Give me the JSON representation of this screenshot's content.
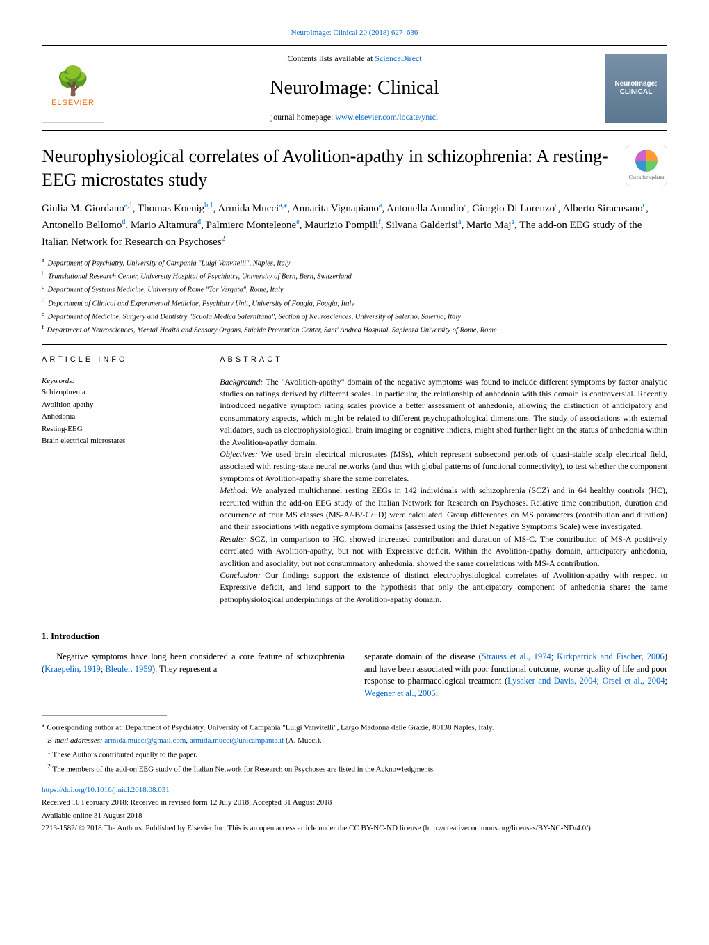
{
  "topLink": "NeuroImage: Clinical 20 (2018) 627–636",
  "header": {
    "publisherName": "ELSEVIER",
    "contentsPrefix": "Contents lists available at ",
    "contentsLink": "ScienceDirect",
    "journalName": "NeuroImage: Clinical",
    "homepagePrefix": "journal homepage: ",
    "homepageLink": "www.elsevier.com/locate/ynicl",
    "coverTitle": "NeuroImage: CLINICAL"
  },
  "article": {
    "title": "Neurophysiological correlates of Avolition-apathy in schizophrenia: A resting-EEG microstates study",
    "checkUpdates": "Check for updates"
  },
  "authors": {
    "line1a": "Giulia M. Giordano",
    "sup1": "a,1",
    "line1b": ", Thomas Koenig",
    "sup2": "b,1",
    "line1c": ", Armida Mucci",
    "sup3": "a,",
    "supStar": "⁎",
    "line1d": ", Annarita Vignapiano",
    "sup4": "a",
    "line1e": ",",
    "line2a": "Antonella Amodio",
    "sup5": "a",
    "line2b": ", Giorgio Di Lorenzo",
    "sup6": "c",
    "line2c": ", Alberto Siracusano",
    "sup7": "c",
    "line2d": ", Antonello Bellomo",
    "sup8": "d",
    "line2e": ",",
    "line3a": "Mario Altamura",
    "sup9": "d",
    "line3b": ", Palmiero Monteleone",
    "sup10": "e",
    "line3c": ", Maurizio Pompili",
    "sup11": "f",
    "line3d": ", Silvana Galderisi",
    "sup12": "a",
    "line3e": ", Mario Maj",
    "sup13": "a",
    "line3f": ", The add-on EEG study of the Italian Network for Research on Psychoses",
    "sup14": "2"
  },
  "affiliations": {
    "a": "Department of Psychiatry, University of Campania \"Luigi Vanvitelli\", Naples, Italy",
    "b": "Translational Research Center, University Hospital of Psychiatry, University of Bern, Bern, Switzerland",
    "c": "Department of Systems Medicine, University of Rome \"Tor Vergata\", Rome, Italy",
    "d": "Department of Clinical and Experimental Medicine, Psychiatry Unit, University of Foggia, Foggia, Italy",
    "e": "Department of Medicine, Surgery and Dentistry \"Scuola Medica Salernitana\", Section of Neurosciences, University of Salerno, Salerno, Italy",
    "f": "Department of Neurosciences, Mental Health and Sensory Organs, Suicide Prevention Center, Sant' Andrea Hospital, Sapienza University of Rome, Rome"
  },
  "info": {
    "head": "ARTICLE INFO",
    "keywordsLabel": "Keywords:",
    "keywords": [
      "Schizophrenia",
      "Avolition-apathy",
      "Anhedonia",
      "Resting-EEG",
      "Brain electrical microstates"
    ]
  },
  "abstract": {
    "head": "ABSTRACT",
    "backgroundLabel": "Background:",
    "background": " The \"Avolition-apathy\" domain of the negative symptoms was found to include different symptoms by factor analytic studies on ratings derived by different scales. In particular, the relationship of anhedonia with this domain is controversial. Recently introduced negative symptom rating scales provide a better assessment of anhedonia, allowing the distinction of anticipatory and consummatory aspects, which might be related to different psychopathological dimensions. The study of associations with external validators, such as electrophysiological, brain imaging or cognitive indices, might shed further light on the status of anhedonia within the Avolition-apathy domain.",
    "objectivesLabel": "Objectives:",
    "objectives": " We used brain electrical microstates (MSs), which represent subsecond periods of quasi-stable scalp electrical field, associated with resting-state neural networks (and thus with global patterns of functional connectivity), to test whether the component symptoms of Avolition-apathy share the same correlates.",
    "methodLabel": "Method:",
    "method": " We analyzed multichannel resting EEGs in 142 individuals with schizophrenia (SCZ) and in 64 healthy controls (HC), recruited within the add-on EEG study of the Italian Network for Research on Psychoses. Relative time contribution, duration and occurrence of four MS classes (MS-A/-B/-C/−D) were calculated. Group differences on MS parameters (contribution and duration) and their associations with negative symptom domains (assessed using the Brief Negative Symptoms Scale) were investigated.",
    "resultsLabel": "Results:",
    "results": " SCZ, in comparison to HC, showed increased contribution and duration of MS-C. The contribution of MS-A positively correlated with Avolition-apathy, but not with Expressive deficit. Within the Avolition-apathy domain, anticipatory anhedonia, avolition and asociality, but not consummatory anhedonia, showed the same correlations with MS-A contribution.",
    "conclusionLabel": "Conclusion:",
    "conclusion": " Our findings support the existence of distinct electrophysiological correlates of Avolition-apathy with respect to Expressive deficit, and lend support to the hypothesis that only the anticipatory component of anhedonia shares the same pathophysiological underpinnings of the Avolition-apathy domain."
  },
  "intro": {
    "head": "1. Introduction",
    "leftPre": "Negative symptoms have long been considered a core feature of schizophrenia (",
    "leftRef1": "Kraepelin, 1919",
    "leftMid": "; ",
    "leftRef2": "Bleuler, 1959",
    "leftPost": "). They represent a",
    "rightPre": "separate domain of the disease (",
    "rightRef1": "Strauss et al., 1974",
    "rightMid1": "; ",
    "rightRef2": "Kirkpatrick and Fischer, 2006",
    "rightMid2": ") and have been associated with poor functional outcome, worse quality of life and poor response to pharmacological treatment (",
    "rightRef3": "Lysaker and Davis, 2004",
    "rightMid3": "; ",
    "rightRef4": "Orsel et al., 2004",
    "rightMid4": "; ",
    "rightRef5": "Wegener et al., 2005",
    "rightPost": ";"
  },
  "footnotes": {
    "corrStar": "⁎",
    "corr": " Corresponding author at: Department of Psychiatry, University of Campania \"Luigi Vanvitelli\", Largo Madonna delle Grazie, 80138 Naples, Italy.",
    "emailLabel": "E-mail addresses: ",
    "email1": "armida.mucci@gmail.com",
    "emailComma": ", ",
    "email2": "armida.mucci@unicampania.it",
    "emailSuffix": " (A. Mucci).",
    "note1sup": "1",
    "note1": " These Authors contributed equally to the paper.",
    "note2sup": "2",
    "note2": " The members of the add-on EEG study of the Italian Network for Research on Psychoses are listed in the Acknowledgments."
  },
  "pub": {
    "doi": "https://doi.org/10.1016/j.nicl.2018.08.031",
    "received": "Received 10 February 2018; Received in revised form 12 July 2018; Accepted 31 August 2018",
    "available": "Available online 31 August 2018",
    "copyright": "2213-1582/ © 2018 The Authors. Published by Elsevier Inc. This is an open access article under the CC BY-NC-ND license (http://creativecommons.org/licenses/BY-NC-ND/4.0/)."
  }
}
